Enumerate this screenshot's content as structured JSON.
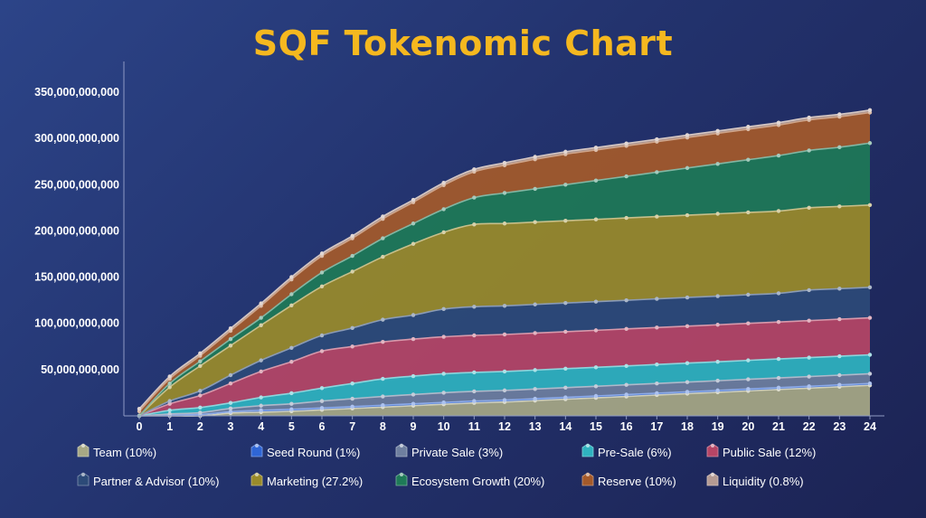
{
  "chart_data": {
    "type": "area",
    "stacked": true,
    "title": "SQF Tokenomic Chart",
    "xlabel": "",
    "ylabel": "",
    "x": [
      0,
      1,
      2,
      3,
      4,
      5,
      6,
      7,
      8,
      9,
      10,
      11,
      12,
      13,
      14,
      15,
      16,
      17,
      18,
      19,
      20,
      21,
      22,
      23,
      24
    ],
    "xlim": [
      0,
      24
    ],
    "ylim": [
      0,
      350000000000
    ],
    "yticks": [
      50000000000,
      100000000000,
      150000000000,
      200000000000,
      250000000000,
      300000000000,
      350000000000
    ],
    "ytick_labels": [
      "50,000,000,000",
      "100,000,000,000",
      "150,000,000,000",
      "200,000,000,000",
      "250,000,000,000",
      "300,000,000,000",
      "350,000,000,000"
    ],
    "grid": false,
    "legend_position": "bottom",
    "series": [
      {
        "name": "Team (10%)",
        "color": "#a7a885",
        "values": [
          0,
          0,
          0,
          3000000000,
          4000000000,
          5000000000,
          6500000000,
          8000000000,
          9500000000,
          11000000000,
          12500000000,
          14000000000,
          15000000000,
          16500000000,
          18000000000,
          19500000000,
          21000000000,
          22500000000,
          24000000000,
          25500000000,
          27000000000,
          28500000000,
          30000000000,
          31500000000,
          33000000000
        ]
      },
      {
        "name": "Seed Round (1%)",
        "color": "#2f66d6",
        "values": [
          0,
          1000000000,
          1500000000,
          1500000000,
          2000000000,
          2000000000,
          2000000000,
          2000000000,
          2000000000,
          2000000000,
          2000000000,
          2000000000,
          2000000000,
          2000000000,
          2000000000,
          2000000000,
          2000000000,
          2000000000,
          2000000000,
          2000000000,
          2000000000,
          2000000000,
          2000000000,
          2000000000,
          2000000000
        ]
      },
      {
        "name": "Private Sale (3%)",
        "color": "#6e7f9f",
        "values": [
          0,
          1000000000,
          2000000000,
          3500000000,
          5000000000,
          6000000000,
          7500000000,
          8500000000,
          9500000000,
          10000000000,
          10500000000,
          10500000000,
          10500000000,
          10500000000,
          10500000000,
          10500000000,
          10500000000,
          10500000000,
          10500000000,
          10500000000,
          10500000000,
          10500000000,
          10500000000,
          10500000000,
          10500000000
        ]
      },
      {
        "name": "Pre-Sale (6%)",
        "color": "#2fb3c0",
        "values": [
          0,
          4000000000,
          5500000000,
          6000000000,
          9000000000,
          11500000000,
          14000000000,
          16500000000,
          19000000000,
          20000000000,
          20500000000,
          20500000000,
          20500000000,
          20500000000,
          20500000000,
          20500000000,
          20500000000,
          20500000000,
          20500000000,
          20500000000,
          20500000000,
          20500000000,
          20500000000,
          20500000000,
          20500000000
        ]
      },
      {
        "name": "Public Sale (12%)",
        "color": "#b64566",
        "values": [
          0,
          7000000000,
          13000000000,
          21000000000,
          28000000000,
          34000000000,
          40000000000,
          40000000000,
          40000000000,
          40000000000,
          40000000000,
          40000000000,
          40000000000,
          40000000000,
          40000000000,
          40000000000,
          40000000000,
          40000000000,
          40000000000,
          40000000000,
          40000000000,
          40000000000,
          40000000000,
          40000000000,
          40000000000
        ]
      },
      {
        "name": "Partner & Advisor (10%)",
        "color": "#2c4a78",
        "values": [
          0,
          3000000000,
          5000000000,
          9000000000,
          12000000000,
          15000000000,
          17000000000,
          20000000000,
          24000000000,
          26000000000,
          30000000000,
          31000000000,
          31000000000,
          31000000000,
          31000000000,
          31000000000,
          31000000000,
          31000000000,
          31000000000,
          31000000000,
          31000000000,
          31000000000,
          33000000000,
          33000000000,
          33000000000
        ]
      },
      {
        "name": "Marketing (27.2%)",
        "color": "#9a8b2a",
        "values": [
          0,
          15000000000,
          27000000000,
          32000000000,
          38000000000,
          46000000000,
          53000000000,
          61000000000,
          68000000000,
          77000000000,
          83000000000,
          89000000000,
          89000000000,
          89000000000,
          89000000000,
          89000000000,
          89000000000,
          89000000000,
          89000000000,
          89000000000,
          89000000000,
          89000000000,
          89000000000,
          89000000000,
          89000000000
        ]
      },
      {
        "name": "Ecosystem Growth (20%)",
        "color": "#1e7a57",
        "values": [
          0,
          4000000000,
          5000000000,
          7000000000,
          8000000000,
          12000000000,
          15000000000,
          17000000000,
          20000000000,
          22000000000,
          25000000000,
          29000000000,
          33000000000,
          36000000000,
          39000000000,
          42000000000,
          45000000000,
          48000000000,
          51000000000,
          54000000000,
          57000000000,
          60000000000,
          62000000000,
          64000000000,
          67000000000
        ]
      },
      {
        "name": "Reserve (10%)",
        "color": "#a55a2a",
        "values": [
          5000000000,
          5000000000,
          6000000000,
          9000000000,
          13000000000,
          16000000000,
          18000000000,
          19000000000,
          21000000000,
          23000000000,
          26000000000,
          28000000000,
          30000000000,
          32000000000,
          33000000000,
          33000000000,
          33000000000,
          33000000000,
          33000000000,
          33000000000,
          33000000000,
          33000000000,
          33000000000,
          33000000000,
          33000000000
        ]
      },
      {
        "name": "Liquidity (0.8%)",
        "color": "#b59b93",
        "values": [
          2600000000,
          2600000000,
          2600000000,
          2600000000,
          2600000000,
          2600000000,
          2600000000,
          2600000000,
          2600000000,
          2600000000,
          2600000000,
          2600000000,
          2600000000,
          2600000000,
          2600000000,
          2600000000,
          2600000000,
          2600000000,
          2600000000,
          2600000000,
          2600000000,
          2600000000,
          2600000000,
          2600000000,
          2600000000
        ]
      }
    ]
  }
}
